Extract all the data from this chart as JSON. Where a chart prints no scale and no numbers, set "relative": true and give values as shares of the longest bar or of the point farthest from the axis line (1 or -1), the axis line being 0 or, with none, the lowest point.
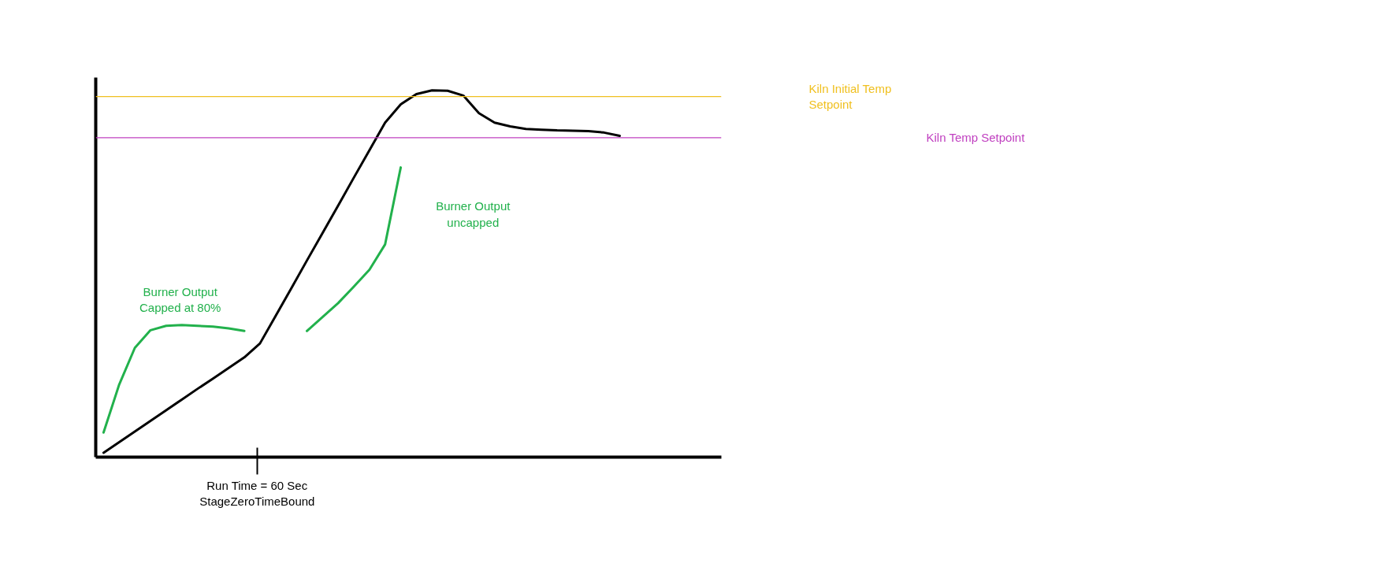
{
  "chart_data": {
    "type": "line",
    "relative": true,
    "categories": [
      null,
      null,
      null,
      null,
      null,
      null,
      null,
      null,
      null,
      null,
      null,
      null,
      null,
      null,
      null,
      null,
      null,
      null,
      null,
      null,
      null,
      null,
      null,
      null,
      null,
      null,
      null,
      null,
      null,
      null,
      null,
      null,
      null,
      null,
      null,
      null,
      null,
      null,
      null,
      null
    ],
    "series": [
      {
        "color": "#000000",
        "values": [
          0.012,
          0.041,
          0.07,
          0.099,
          0.128,
          0.157,
          0.186,
          0.214,
          0.243,
          0.272,
          0.31,
          0.385,
          0.46,
          0.536,
          0.611,
          0.686,
          0.762,
          0.837,
          0.912,
          0.962,
          0.99,
          1.0,
          0.999,
          0.986,
          0.938,
          0.912,
          0.902,
          0.895,
          0.893,
          0.891,
          0.89,
          0.889,
          0.885,
          0.876,
          null,
          null,
          null,
          null,
          null,
          null
        ]
      },
      {
        "color": "#22b14c",
        "values": [
          0.067,
          0.198,
          0.298,
          0.346,
          0.358,
          0.36,
          0.358,
          0.356,
          0.351,
          0.344,
          null,
          null,
          null,
          null,
          null,
          null,
          null,
          null,
          null,
          null,
          null,
          null,
          null,
          null,
          null,
          null,
          null,
          null,
          null,
          null,
          null,
          null,
          null,
          null,
          null,
          null,
          null,
          null,
          null,
          null
        ]
      },
      {
        "color": "#22b14c",
        "values": [
          null,
          null,
          null,
          null,
          null,
          null,
          null,
          null,
          null,
          null,
          null,
          null,
          null,
          0.344,
          0.382,
          0.42,
          0.465,
          0.511,
          0.58,
          0.79,
          null,
          null,
          null,
          null,
          null,
          null,
          null,
          null,
          null,
          null,
          null,
          null,
          null,
          null,
          null,
          null,
          null,
          null,
          null,
          null
        ]
      }
    ],
    "ref_lines": [
      {
        "axis": "y",
        "value": 0.983,
        "label": "Kiln Initial Temp\nSetpoint",
        "color": "#f0c020"
      },
      {
        "axis": "y",
        "value": 0.871,
        "label": "Kiln Temp Setpoint",
        "color": "#c040c0"
      }
    ],
    "annotations": [
      "Run Time = 60 Sec\nStageZeroTimeBound",
      "Burner Output\nCapped at 80%",
      "Burner Output\nuncapped"
    ],
    "grid": false,
    "marker": "none",
    "line_style": "solid"
  }
}
